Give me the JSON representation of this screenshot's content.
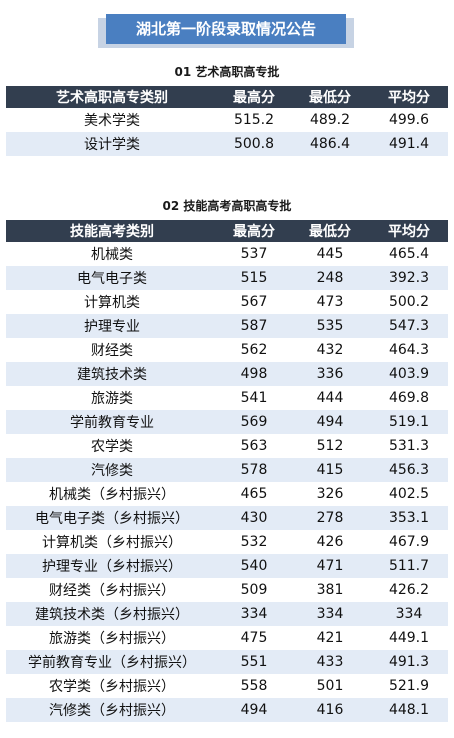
{
  "page": {
    "title": "湖北第一阶段录取情况公告"
  },
  "section1": {
    "title": "01 艺术高职高专批",
    "headers": [
      "艺术高职高专类别",
      "最高分",
      "最低分",
      "平均分"
    ],
    "rows": [
      [
        "美术学类",
        "515.2",
        "489.2",
        "499.6"
      ],
      [
        "设计学类",
        "500.8",
        "486.4",
        "491.4"
      ]
    ]
  },
  "section2": {
    "title": "02 技能高考高职高专批",
    "headers": [
      "技能高考类别",
      "最高分",
      "最低分",
      "平均分"
    ],
    "rows": [
      [
        "机械类",
        "537",
        "445",
        "465.4"
      ],
      [
        "电气电子类",
        "515",
        "248",
        "392.3"
      ],
      [
        "计算机类",
        "567",
        "473",
        "500.2"
      ],
      [
        "护理专业",
        "587",
        "535",
        "547.3"
      ],
      [
        "财经类",
        "562",
        "432",
        "464.3"
      ],
      [
        "建筑技术类",
        "498",
        "336",
        "403.9"
      ],
      [
        "旅游类",
        "541",
        "444",
        "469.8"
      ],
      [
        "学前教育专业",
        "569",
        "494",
        "519.1"
      ],
      [
        "农学类",
        "563",
        "512",
        "531.3"
      ],
      [
        "汽修类",
        "578",
        "415",
        "456.3"
      ],
      [
        "机械类（乡村振兴）",
        "465",
        "326",
        "402.5"
      ],
      [
        "电气电子类（乡村振兴）",
        "430",
        "278",
        "353.1"
      ],
      [
        "计算机类（乡村振兴）",
        "532",
        "426",
        "467.9"
      ],
      [
        "护理专业（乡村振兴）",
        "540",
        "471",
        "511.7"
      ],
      [
        "财经类（乡村振兴）",
        "509",
        "381",
        "426.2"
      ],
      [
        "建筑技术类（乡村振兴）",
        "334",
        "334",
        "334"
      ],
      [
        "旅游类（乡村振兴）",
        "475",
        "421",
        "449.1"
      ],
      [
        "学前教育专业（乡村振兴）",
        "551",
        "433",
        "491.3"
      ],
      [
        "农学类（乡村振兴）",
        "558",
        "501",
        "521.9"
      ],
      [
        "汽修类（乡村振兴）",
        "494",
        "416",
        "448.1"
      ]
    ]
  },
  "colors": {
    "banner": "#4a7fc1",
    "header": "#323e4f",
    "stripe": "#e3ebf6"
  }
}
